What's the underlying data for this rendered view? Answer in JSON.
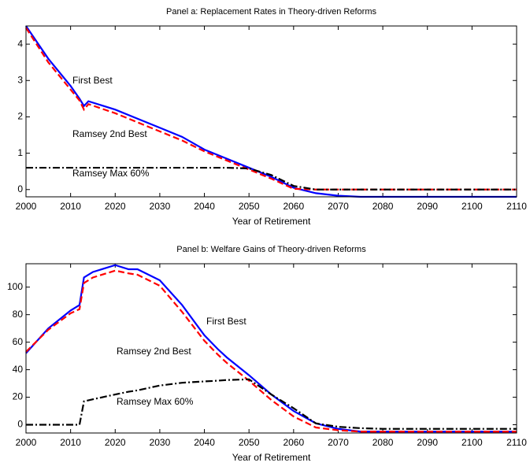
{
  "chart_data": [
    {
      "type": "line",
      "title": "Panel a: Replacement Rates in Theory-driven Reforms",
      "xlabel": "Year of Retirement",
      "x": [
        2000,
        2005,
        2010,
        2012,
        2013,
        2014,
        2020,
        2025,
        2030,
        2035,
        2040,
        2045,
        2050,
        2055,
        2060,
        2065,
        2070,
        2075,
        2080,
        2090,
        2100,
        2110
      ],
      "series": [
        {
          "name": "First Best",
          "color": "#0000ff",
          "style": "solid",
          "values": [
            4.5,
            3.6,
            2.85,
            2.5,
            2.3,
            2.43,
            2.2,
            1.95,
            1.7,
            1.45,
            1.1,
            0.85,
            0.6,
            0.35,
            0.05,
            -0.1,
            -0.17,
            -0.2,
            -0.2,
            -0.2,
            -0.2,
            -0.2
          ]
        },
        {
          "name": "Ramsey 2nd Best",
          "color": "#ff0000",
          "style": "dashed",
          "values": [
            4.45,
            3.5,
            2.75,
            2.45,
            2.2,
            2.35,
            2.1,
            1.85,
            1.6,
            1.35,
            1.05,
            0.8,
            0.55,
            0.3,
            0.02,
            0,
            0,
            0,
            0,
            0,
            0,
            0
          ]
        },
        {
          "name": "Ramsey Max 60%",
          "color": "#000000",
          "style": "dashdot",
          "values": [
            0.6,
            0.6,
            0.6,
            0.6,
            0.6,
            0.6,
            0.6,
            0.6,
            0.6,
            0.6,
            0.6,
            0.6,
            0.58,
            0.4,
            0.1,
            0,
            0,
            0,
            0,
            0,
            0,
            0
          ]
        }
      ],
      "xlim": [
        2000,
        2110
      ],
      "xticks": [
        2000,
        2010,
        2020,
        2030,
        2040,
        2050,
        2060,
        2070,
        2080,
        2090,
        2100,
        2110
      ],
      "ylim": [
        -0.2,
        4.5
      ],
      "yticks": [
        0,
        1,
        2,
        3,
        4
      ],
      "grid": false
    },
    {
      "type": "line",
      "title": "Panel b: Welfare Gains of Theory-driven Reforms",
      "xlabel": "Year of Retirement",
      "x": [
        2000,
        2005,
        2010,
        2012,
        2013,
        2015,
        2020,
        2023,
        2025,
        2030,
        2035,
        2040,
        2043,
        2045,
        2050,
        2055,
        2060,
        2065,
        2070,
        2075,
        2080,
        2090,
        2100,
        2110
      ],
      "series": [
        {
          "name": "First Best",
          "color": "#0000ff",
          "style": "solid",
          "values": [
            52,
            70,
            83,
            87,
            107,
            111,
            116,
            113,
            113,
            105,
            87,
            65,
            55,
            49,
            36,
            22,
            10,
            1,
            -3,
            -5,
            -5,
            -5,
            -5,
            -5
          ]
        },
        {
          "name": "Ramsey 2nd Best",
          "color": "#ff0000",
          "style": "dashed",
          "values": [
            53,
            69,
            81,
            84,
            103,
            107,
            112,
            110,
            109,
            101,
            82,
            61,
            51,
            45,
            32,
            18,
            6,
            -2,
            -4,
            -5,
            -5,
            -5,
            -5,
            -5
          ]
        },
        {
          "name": "Ramsey Max 60%",
          "color": "#000000",
          "style": "dashdot",
          "values": [
            0,
            0,
            0,
            0,
            17,
            18.5,
            22,
            24,
            25,
            28.5,
            30.5,
            31.5,
            32,
            32.5,
            33,
            22,
            12,
            1,
            -1.5,
            -2.5,
            -3,
            -3,
            -3,
            -3
          ]
        }
      ],
      "xlim": [
        2000,
        2110
      ],
      "xticks": [
        2000,
        2010,
        2020,
        2030,
        2040,
        2050,
        2060,
        2070,
        2080,
        2090,
        2100,
        2110
      ],
      "ylim": [
        -6,
        117
      ],
      "yticks": [
        0,
        20,
        40,
        60,
        80,
        100
      ],
      "grid": false
    }
  ]
}
